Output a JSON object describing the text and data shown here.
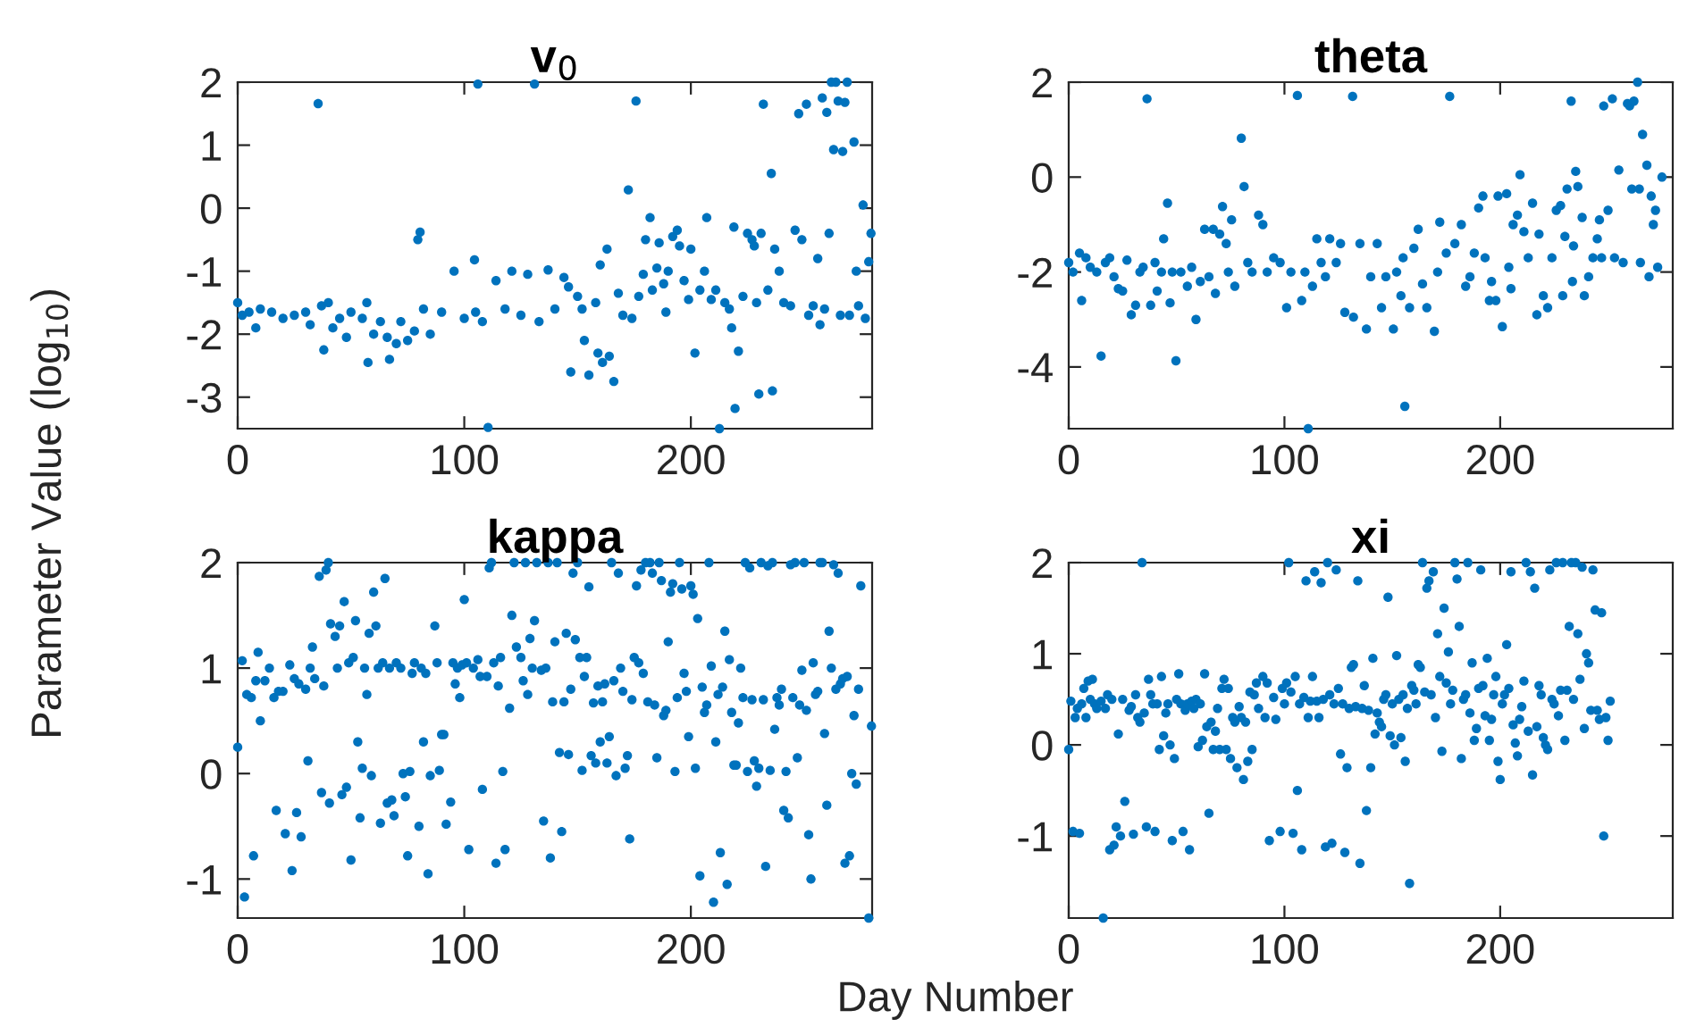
{
  "chart_data": [
    {
      "type": "scatter",
      "title": "v$_{0}$",
      "ylabel": "Parameter Value (log$_{10}$)",
      "color": "#0072bd",
      "marker": "circle",
      "xlim": [
        0,
        280
      ],
      "xticks": [
        0,
        100,
        200
      ],
      "ylim": [
        -3.5,
        2
      ],
      "yticks": [
        -3,
        -2,
        -1,
        0,
        1,
        2
      ],
      "x": [
        0,
        2,
        5,
        8,
        10,
        15,
        20,
        25,
        30,
        32,
        35.5,
        37,
        38,
        40,
        42,
        45,
        48,
        50,
        55,
        57,
        57.5,
        60,
        63,
        66,
        67,
        70,
        72,
        75,
        78,
        79.5,
        80.5,
        82,
        85,
        90,
        95.5,
        100,
        104.5,
        105,
        106,
        108,
        110.5,
        114,
        118,
        121,
        125,
        128,
        131,
        133,
        137,
        140,
        144,
        146,
        147,
        150,
        152,
        153,
        155,
        158,
        159,
        160,
        161,
        163,
        164,
        166,
        168,
        170,
        172.4,
        174,
        175.8,
        177,
        179,
        180,
        182,
        183,
        185,
        186,
        188,
        189,
        190,
        192,
        194,
        195,
        197,
        199,
        200,
        201.8,
        204,
        206,
        207,
        209,
        211,
        212.6,
        215,
        217,
        218,
        219,
        219.5,
        221,
        223,
        225,
        227,
        228,
        229,
        230,
        231,
        232,
        234,
        235.5,
        236,
        237,
        239,
        241,
        244,
        246,
        247.6,
        249,
        251,
        252,
        254,
        256,
        257,
        258,
        259,
        260,
        261,
        262,
        263,
        264,
        265,
        266,
        267,
        268,
        269,
        270,
        272,
        273,
        274,
        276,
        277,
        278.5,
        279.5
      ],
      "values": [
        -1.5,
        -1.7,
        -1.65,
        -1.9,
        -1.6,
        -1.65,
        -1.75,
        -1.7,
        -1.65,
        -1.85,
        1.66,
        -1.55,
        -2.25,
        -1.5,
        -1.9,
        -1.75,
        -2.05,
        -1.65,
        -1.75,
        -1.5,
        -2.45,
        -2.0,
        -1.8,
        -2.05,
        -2.4,
        -2.15,
        -1.8,
        -2.1,
        -1.95,
        -0.5,
        -0.38,
        -1.6,
        -2.0,
        -1.65,
        -1.0,
        -1.75,
        -0.82,
        -1.65,
        1.97,
        -1.8,
        -3.48,
        -1.15,
        -1.6,
        -1.0,
        -1.7,
        -1.05,
        1.97,
        -1.8,
        -0.98,
        -1.6,
        -1.1,
        -1.25,
        -2.6,
        -1.4,
        -1.6,
        -2.1,
        -2.65,
        -1.5,
        -2.3,
        -0.9,
        -2.45,
        -0.65,
        -2.35,
        -2.75,
        -1.35,
        -1.7,
        0.29,
        -1.75,
        1.7,
        -1.4,
        -1.05,
        -0.5,
        -0.15,
        -1.3,
        -0.95,
        -0.55,
        -1.2,
        -1.65,
        -1.0,
        -0.45,
        -0.35,
        -0.6,
        -1.15,
        -1.45,
        -0.65,
        -2.3,
        -1.3,
        -1.0,
        -0.15,
        -1.45,
        -1.3,
        -3.5,
        -1.5,
        -1.6,
        -1.9,
        -0.3,
        -3.18,
        -2.27,
        -1.4,
        -0.4,
        -0.5,
        -0.6,
        -1.5,
        -2.95,
        -0.4,
        1.65,
        -1.3,
        0.55,
        -2.9,
        -0.65,
        -1.0,
        -1.5,
        -1.55,
        -0.35,
        1.5,
        -0.5,
        1.65,
        -1.7,
        -1.55,
        -0.8,
        -1.85,
        1.75,
        -1.6,
        1.52,
        -0.4,
        2.0,
        0.93,
        2.0,
        1.7,
        -1.7,
        0.9,
        1.68,
        2.0,
        -1.7,
        1.05,
        -1.0,
        -1.55,
        0.05,
        -1.75,
        -0.85,
        -0.4
      ]
    },
    {
      "type": "scatter",
      "title": "theta",
      "color": "#0072bd",
      "marker": "circle",
      "xlim": [
        0,
        280
      ],
      "xticks": [
        0,
        100,
        200
      ],
      "ylim": [
        -5.3,
        2
      ],
      "yticks": [
        -4,
        -2,
        0,
        2
      ],
      "x": [
        0,
        2,
        5,
        6,
        8,
        10,
        13,
        15,
        17,
        19,
        21,
        23,
        25,
        27,
        29,
        31,
        33,
        34.5,
        36.3,
        38,
        40,
        41,
        43,
        44,
        45.8,
        47,
        48,
        49.7,
        52,
        55,
        57,
        59,
        61,
        63,
        65,
        67,
        68,
        70,
        71.3,
        73,
        74,
        75.5,
        77,
        80,
        81.3,
        83,
        85,
        88,
        90,
        92,
        95,
        98,
        101,
        103,
        106,
        108,
        109.5,
        111,
        113,
        115,
        117,
        119,
        121,
        124,
        126,
        128,
        131.6,
        132,
        135,
        138,
        140,
        143,
        145,
        147,
        150.5,
        152,
        154,
        155,
        155.8,
        158,
        160,
        162,
        164,
        166,
        169.5,
        171,
        172,
        175,
        176.6,
        179,
        182,
        184,
        186,
        188,
        190,
        192,
        193,
        195,
        196,
        198,
        199,
        201,
        203,
        204,
        205,
        206,
        208,
        209.2,
        211,
        213,
        215,
        217,
        218,
        220,
        222,
        224,
        226,
        228,
        229,
        230,
        231,
        232.9,
        233.5,
        234,
        235,
        236,
        238,
        239,
        241,
        243,
        245,
        246,
        247,
        248,
        250,
        252,
        253,
        255,
        257,
        259,
        260,
        261,
        262,
        263.7,
        264.5,
        265,
        266,
        268,
        269,
        270,
        271,
        272,
        273,
        275
      ],
      "values": [
        -1.8,
        -2.0,
        -1.6,
        -2.6,
        -1.7,
        -1.9,
        -2.0,
        -3.77,
        -1.8,
        -1.7,
        -2.1,
        -2.35,
        -2.4,
        -1.75,
        -2.9,
        -2.7,
        -2.0,
        -1.9,
        1.65,
        -2.7,
        -1.8,
        -2.4,
        -2.0,
        -1.3,
        -0.55,
        -2.65,
        -2.0,
        -3.87,
        -2.0,
        -2.3,
        -1.9,
        -3.0,
        -2.2,
        -1.1,
        -2.1,
        -1.1,
        -2.45,
        -1.2,
        -0.62,
        -1.4,
        -2.0,
        -0.9,
        -2.3,
        0.82,
        -0.2,
        -1.8,
        -2.0,
        -0.8,
        -1.0,
        -2.0,
        -1.7,
        -1.8,
        -2.75,
        -2.0,
        1.72,
        -2.6,
        -2.0,
        -5.3,
        -2.3,
        -1.3,
        -1.8,
        -2.1,
        -1.3,
        -1.8,
        -1.4,
        -2.85,
        1.7,
        -2.95,
        -1.4,
        -3.2,
        -2.1,
        -1.4,
        -2.75,
        -2.1,
        -3.2,
        -2.0,
        -2.5,
        -1.7,
        -4.83,
        -2.75,
        -1.5,
        -1.1,
        -2.25,
        -2.75,
        -3.25,
        -2.0,
        -0.95,
        -1.6,
        1.7,
        -1.4,
        -1.0,
        -2.3,
        -2.1,
        -1.6,
        -0.65,
        -0.4,
        -1.7,
        -2.6,
        -2.2,
        -2.6,
        -0.4,
        -3.15,
        -0.35,
        -1.9,
        -2.35,
        -1.0,
        -0.8,
        0.05,
        -1.15,
        -1.7,
        -0.55,
        -2.9,
        -1.2,
        -2.5,
        -2.75,
        -1.7,
        -0.7,
        -0.6,
        -2.5,
        -1.25,
        -0.25,
        1.6,
        -2.2,
        -1.45,
        0.12,
        -0.2,
        -0.85,
        -2.5,
        -2.1,
        -1.7,
        -1.3,
        -0.9,
        -1.7,
        1.5,
        -0.7,
        1.65,
        -1.7,
        0.15,
        -1.8,
        1.55,
        1.5,
        -0.25,
        1.6,
        2.0,
        -0.25,
        -1.8,
        0.9,
        0.25,
        -2.1,
        -0.4,
        -1.0,
        -0.7,
        -1.9,
        0.0
      ]
    },
    {
      "type": "scatter",
      "title": "kappa",
      "xlabel": "Day Number",
      "color": "#0072bd",
      "marker": "circle",
      "xlim": [
        0,
        280
      ],
      "xticks": [
        0,
        100,
        200
      ],
      "ylim": [
        -1.37,
        2
      ],
      "yticks": [
        -1,
        0,
        1,
        2
      ],
      "x": [
        0,
        2,
        3,
        4,
        6,
        7,
        8,
        9,
        10,
        12,
        14,
        16,
        17,
        18,
        20,
        21,
        23,
        24,
        25,
        26,
        27,
        28,
        30,
        31,
        32,
        33,
        34,
        36,
        37,
        38,
        39,
        40,
        40.5,
        41,
        43,
        44,
        45,
        46,
        47,
        48,
        49,
        50,
        51,
        52,
        53,
        54,
        55,
        56,
        57,
        58,
        59,
        60,
        61,
        62,
        63,
        64,
        65,
        66,
        67,
        68,
        69,
        70,
        72,
        73,
        74,
        75,
        76,
        77,
        78,
        80,
        81,
        82,
        83,
        84,
        85,
        87,
        88,
        89,
        90,
        91,
        92,
        94,
        95,
        96,
        97,
        98,
        99,
        100,
        101,
        102,
        104,
        106,
        107,
        108,
        110,
        111,
        112,
        113,
        114,
        115,
        116,
        117,
        118,
        120,
        121,
        122,
        123,
        125,
        126,
        127,
        128,
        129,
        130,
        131,
        132,
        134,
        135,
        136,
        137,
        138,
        139,
        140,
        141,
        142,
        143,
        144,
        145,
        146,
        147,
        148,
        149,
        150,
        151,
        152,
        153,
        154,
        155,
        156,
        157,
        158,
        159,
        160,
        161,
        162,
        163,
        164,
        165,
        166,
        167,
        168,
        169,
        170,
        171,
        172,
        173,
        174,
        175,
        176,
        177,
        178,
        179,
        180,
        181,
        182,
        183,
        184,
        185,
        186,
        187,
        188,
        189,
        190,
        191,
        192,
        193,
        194,
        195,
        196,
        197,
        198,
        199,
        200,
        201,
        202,
        203,
        204,
        205,
        206,
        207,
        208,
        209,
        210,
        211,
        212,
        213,
        214,
        215,
        216,
        217,
        218,
        219,
        220,
        221,
        222,
        223,
        224,
        225,
        226,
        227,
        228,
        229,
        230,
        231,
        232,
        233,
        234,
        235,
        236,
        237,
        238,
        239,
        240,
        241,
        242,
        243,
        244,
        245,
        246,
        247,
        248,
        249,
        250,
        251,
        252,
        253,
        254,
        255,
        256,
        257,
        258,
        259,
        260,
        261,
        262,
        263,
        264,
        265,
        266,
        267,
        268,
        269,
        270,
        271,
        272,
        273,
        274,
        275,
        278.5,
        279.7
      ],
      "values": [
        0.25,
        1.07,
        -1.17,
        0.75,
        0.72,
        -0.78,
        0.88,
        1.15,
        0.5,
        0.88,
        1.0,
        0.72,
        -0.35,
        0.78,
        0.78,
        -0.57,
        1.03,
        -0.92,
        0.9,
        -0.37,
        0.85,
        -0.6,
        0.8,
        0.12,
        1.0,
        1.2,
        0.9,
        1.87,
        -0.18,
        0.83,
        1.93,
        2.0,
        -0.28,
        1.42,
        1.3,
        1.0,
        1.4,
        -0.2,
        1.63,
        -0.13,
        1.05,
        -0.82,
        1.1,
        1.45,
        0.3,
        -0.42,
        0.05,
        1.0,
        0.75,
        1.33,
        -0.02,
        1.72,
        1.4,
        1.0,
        -0.47,
        1.05,
        1.85,
        -0.28,
        1.0,
        -0.25,
        -0.4,
        1.05,
        1.0,
        0.0,
        -0.22,
        -0.78,
        0.02,
        0.95,
        1.05,
        -0.5,
        1.0,
        0.3,
        0.95,
        -0.95,
        -0.02,
        1.4,
        1.05,
        0.03,
        0.37,
        0.37,
        -0.48,
        -0.27,
        1.05,
        0.85,
        1.0,
        0.72,
        1.03,
        1.65,
        1.05,
        -0.72,
        1.0,
        1.08,
        0.92,
        -0.15,
        0.92,
        1.95,
        2.0,
        1.05,
        -0.85,
        0.83,
        1.1,
        0.02,
        -0.72,
        0.62,
        1.5,
        2.0,
        1.2,
        1.1,
        0.88,
        2.0,
        0.75,
        1.28,
        1.0,
        1.45,
        2.0,
        0.98,
        -0.45,
        1.0,
        2.0,
        -0.8,
        0.68,
        1.25,
        2.0,
        0.2,
        -0.55,
        0.68,
        1.33,
        0.18,
        0.8,
        1.9,
        1.27,
        2.0,
        1.1,
        0.03,
        0.92,
        1.1,
        1.77,
        0.17,
        0.67,
        0.1,
        0.83,
        0.3,
        0.68,
        0.85,
        0.1,
        0.35,
        2.0,
        0.88,
        -0.02,
        1.9,
        1.0,
        0.78,
        0.05,
        0.17,
        -0.62,
        0.7,
        1.1,
        1.78,
        1.05,
        1.93,
        0.95,
        2.0,
        0.68,
        2.0,
        1.9,
        0.65,
        0.15,
        2.0,
        1.83,
        0.55,
        0.6,
        1.25,
        1.72,
        1.8,
        0.02,
        0.72,
        2.0,
        1.75,
        0.95,
        0.78,
        0.35,
        1.78,
        1.7,
        0.05,
        1.47,
        -0.97,
        0.82,
        0.58,
        0.65,
        2.0,
        1.02,
        -1.22,
        0.3,
        0.75,
        -0.75,
        0.82,
        1.35,
        -1.05,
        1.08,
        0.58,
        0.08,
        0.08,
        0.48,
        1.0,
        0.72,
        2.0,
        0.02,
        1.95,
        0.7,
        0.12,
        -0.12,
        0.05,
        2.0,
        0.7,
        -0.88,
        1.97,
        0.03,
        2.0,
        0.42,
        0.72,
        0.65,
        0.8,
        -0.35,
        0.02,
        -0.42,
        1.98,
        0.72,
        2.0,
        0.15,
        0.65,
        0.98,
        2.0,
        0.6,
        -0.58,
        -1.0,
        1.05,
        0.75,
        0.78,
        2.0,
        2.0,
        0.38,
        -0.3,
        1.35,
        1.0,
        1.98,
        0.8,
        1.9,
        0.85,
        0.9,
        -0.85,
        0.92,
        -0.78,
        0.0,
        0.55,
        -0.1,
        0.8,
        1.78,
        -1.37,
        0.45
      ]
    },
    {
      "type": "scatter",
      "title": "xi",
      "color": "#0072bd",
      "marker": "circle",
      "xlim": [
        0,
        280
      ],
      "xticks": [
        0,
        100,
        200
      ],
      "ylim": [
        -1.9,
        2
      ],
      "yticks": [
        -1,
        0,
        1,
        2
      ],
      "x": [
        0,
        1,
        2,
        3,
        4,
        5,
        6,
        7,
        8,
        9,
        10,
        11,
        12,
        13,
        15,
        16,
        17,
        18,
        19,
        20,
        21,
        22,
        23,
        24,
        25,
        26,
        28,
        29,
        30,
        31,
        32,
        33,
        34,
        35,
        36,
        37,
        38,
        39,
        40,
        41,
        42,
        43,
        44,
        45,
        46,
        47,
        48,
        49,
        50,
        51,
        52,
        53,
        54,
        55,
        56,
        57,
        58,
        59,
        60,
        61,
        62,
        63,
        64,
        65,
        66,
        67,
        68,
        69,
        70,
        71,
        72,
        73,
        74,
        75,
        76,
        77,
        78,
        79,
        80,
        81,
        82,
        83,
        84,
        85,
        86,
        87,
        88,
        90,
        91,
        92,
        93,
        95,
        96,
        98,
        99,
        100,
        101,
        102,
        103,
        104,
        105,
        106,
        107,
        108,
        109,
        110,
        111,
        112,
        113,
        114,
        115,
        116,
        117,
        118,
        119,
        120,
        121,
        122,
        123,
        124,
        125,
        126,
        127,
        128,
        129,
        130,
        131,
        132,
        133,
        134,
        135,
        136,
        137,
        138,
        139,
        140,
        141,
        142,
        143,
        144,
        145,
        146,
        147,
        148,
        149,
        150,
        151,
        152,
        153,
        154,
        155,
        156,
        157,
        158,
        159,
        160,
        161,
        162,
        163,
        164,
        165,
        166,
        167,
        168,
        169,
        170,
        171,
        172,
        173,
        174,
        175,
        176,
        177,
        178,
        179,
        180,
        181,
        182,
        183,
        184,
        185,
        186,
        187,
        188,
        189,
        190,
        191,
        192,
        193,
        194,
        195,
        196,
        197,
        198,
        199,
        200,
        201,
        202,
        203,
        204,
        205,
        206,
        207,
        208,
        209,
        210,
        211,
        212,
        213,
        214,
        215,
        216,
        217,
        218,
        219,
        220,
        221,
        222,
        223,
        224,
        225,
        226,
        227,
        228,
        229,
        230,
        231,
        232,
        233,
        234,
        235,
        236,
        237,
        238,
        239,
        240,
        241,
        242,
        243,
        244,
        245,
        246,
        247,
        248,
        249,
        250,
        251
      ],
      "values": [
        -0.05,
        0.48,
        -0.95,
        0.3,
        0.4,
        -0.97,
        0.45,
        0.62,
        0.3,
        0.7,
        0.5,
        0.72,
        0.45,
        0.4,
        0.48,
        -1.9,
        0.4,
        0.55,
        -1.15,
        0.5,
        -1.1,
        -0.9,
        0.12,
        -1.0,
        0.5,
        -0.62,
        0.38,
        0.42,
        -0.98,
        0.55,
        0.3,
        0.25,
        2.0,
        0.35,
        -0.9,
        0.72,
        0.55,
        0.45,
        -0.95,
        0.45,
        -0.05,
        0.75,
        0.1,
        0.35,
        0.45,
        0.0,
        -1.05,
        -0.15,
        0.5,
        0.78,
        0.45,
        -0.95,
        0.38,
        0.45,
        -1.15,
        0.48,
        0.4,
        0.5,
        -0.02,
        0.45,
        0.05,
        0.78,
        0.2,
        -0.75,
        0.25,
        -0.05,
        0.15,
        0.4,
        -0.05,
        0.62,
        0.72,
        -0.05,
        0.62,
        -0.15,
        0.3,
        0.25,
        -0.25,
        0.42,
        0.3,
        -0.38,
        0.25,
        -0.18,
        0.58,
        -0.05,
        0.55,
        0.68,
        0.4,
        0.75,
        0.3,
        0.68,
        -1.05,
        0.52,
        0.28,
        -0.95,
        0.62,
        0.45,
        0.68,
        2.0,
        0.58,
        -0.97,
        0.75,
        -0.5,
        0.45,
        -1.15,
        0.52,
        1.8,
        0.3,
        0.48,
        0.75,
        1.9,
        0.48,
        0.3,
        1.78,
        0.5,
        -1.12,
        2.0,
        0.55,
        -1.08,
        0.45,
        1.92,
        0.62,
        -0.1,
        0.45,
        -1.18,
        -0.25,
        0.4,
        0.85,
        0.88,
        0.42,
        1.8,
        -1.3,
        0.4,
        0.65,
        -0.72,
        0.38,
        -0.25,
        0.95,
        0.12,
        0.35,
        0.25,
        0.2,
        0.5,
        0.55,
        1.62,
        0.1,
        0.45,
        0.0,
        0.98,
        0.5,
        0.08,
        0.55,
        -0.18,
        0.4,
        -1.52,
        0.65,
        0.6,
        0.45,
        0.88,
        0.85,
        2.0,
        0.58,
        1.72,
        1.8,
        0.55,
        1.9,
        0.3,
        1.22,
        0.75,
        -0.07,
        1.5,
        0.68,
        1.02,
        0.45,
        0.6,
        2.0,
        1.82,
        1.3,
        -0.15,
        0.5,
        0.55,
        2.0,
        0.35,
        0.9,
        0.05,
        0.18,
        0.62,
        1.92,
        0.65,
        0.32,
        0.95,
        0.05,
        0.28,
        0.55,
        0.75,
        -0.18,
        -0.38,
        0.45,
        0.55,
        1.1,
        0.62,
        1.9,
        0.22,
        0.02,
        -0.12,
        0.28,
        0.42,
        0.7,
        2.0,
        0.15,
        1.9,
        -0.33,
        1.72,
        0.2,
        0.65,
        0.55,
        0.08,
        0.0,
        -0.05,
        1.92,
        0.5,
        0.45,
        2.0,
        0.32,
        0.6,
        2.0,
        0.05,
        0.6,
        1.3,
        2.0,
        0.5,
        2.0,
        1.22,
        0.72,
        1.95,
        0.18,
        1.0,
        0.9,
        0.38,
        1.92,
        1.48,
        0.38,
        0.28,
        1.45,
        -1.0,
        0.3,
        0.05,
        0.48
      ]
    }
  ]
}
